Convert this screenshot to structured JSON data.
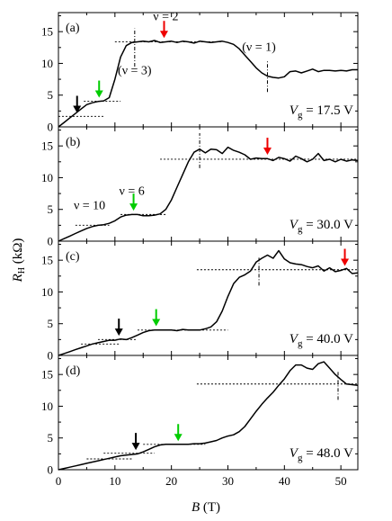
{
  "chart_data": [
    {
      "panel": "(a)",
      "type": "line",
      "xlabel": "B (T)",
      "ylabel": "R_H (kΩ)",
      "xlim": [
        0,
        53
      ],
      "ylim": [
        0,
        18
      ],
      "yticks": [
        0,
        5,
        10,
        15
      ],
      "x": [
        0,
        1,
        2,
        3,
        4,
        5,
        6,
        7,
        8,
        9,
        10,
        11,
        12,
        13,
        14,
        15,
        16,
        17,
        18,
        19,
        20,
        21,
        22,
        23,
        24,
        25,
        26,
        27,
        28,
        29,
        30,
        31,
        32,
        33,
        34,
        35,
        36,
        37,
        38,
        39,
        40,
        41,
        42,
        43,
        44,
        45,
        46,
        47,
        48,
        49,
        50,
        51,
        52,
        53
      ],
      "y": [
        0,
        0.7,
        1.4,
        2.1,
        2.8,
        3.5,
        3.8,
        4.0,
        4.1,
        4.6,
        7.5,
        11.0,
        12.8,
        13.3,
        13.4,
        13.5,
        13.4,
        13.6,
        13.3,
        13.4,
        13.5,
        13.3,
        13.5,
        13.4,
        13.2,
        13.5,
        13.4,
        13.3,
        13.4,
        13.5,
        13.3,
        13.0,
        12.3,
        11.3,
        10.3,
        9.3,
        8.5,
        8.0,
        7.8,
        7.7,
        7.9,
        8.7,
        8.8,
        8.5,
        8.8,
        9.1,
        8.7,
        8.9,
        8.9,
        8.8,
        8.9,
        8.8,
        9.0,
        9.0
      ],
      "plateaus": [
        {
          "y": 1.65,
          "x": [
            0,
            8
          ]
        },
        {
          "y": 4.05,
          "x": [
            4.5,
            11
          ]
        },
        {
          "y": 13.4,
          "x": [
            10,
            29
          ]
        }
      ],
      "vlines": [
        {
          "x": 13.5,
          "y": [
            9.5,
            15.5
          ]
        },
        {
          "x": 37.0,
          "y": [
            5.5,
            10.5
          ]
        }
      ],
      "arrows": [
        {
          "color": "#000000",
          "x": 3.3,
          "tip_y": 2.2
        },
        {
          "color": "#00cc00",
          "x": 7.2,
          "tip_y": 4.6
        },
        {
          "color": "#ee0000",
          "x": 18.7,
          "tip_y": 14.0
        }
      ],
      "annotations": [
        {
          "text": "ν = 2",
          "x": 19,
          "y": 16.8
        },
        {
          "text": "(ν = 3)",
          "x": 13.5,
          "y": 8.3
        },
        {
          "text": "(ν = 1)",
          "x": 35.5,
          "y": 12.0
        }
      ],
      "vg_label": "V",
      "vg_sub": "g",
      "vg_value": " = 17.5 V"
    },
    {
      "panel": "(b)",
      "type": "line",
      "xlim": [
        0,
        53
      ],
      "ylim": [
        0,
        18
      ],
      "yticks": [
        0,
        5,
        10,
        15
      ],
      "x": [
        0,
        1,
        2,
        3,
        4,
        5,
        6,
        7,
        8,
        9,
        10,
        11,
        12,
        13,
        14,
        15,
        16,
        17,
        18,
        19,
        20,
        21,
        22,
        23,
        24,
        25,
        26,
        27,
        28,
        29,
        30,
        31,
        32,
        33,
        34,
        35,
        36,
        37,
        38,
        39,
        40,
        41,
        42,
        43,
        44,
        45,
        46,
        47,
        48,
        49,
        50,
        51,
        52,
        53
      ],
      "y": [
        0,
        0.4,
        0.8,
        1.2,
        1.6,
        2.0,
        2.3,
        2.5,
        2.6,
        2.8,
        3.2,
        3.8,
        4.1,
        4.2,
        4.2,
        4.0,
        4.0,
        4.1,
        4.3,
        5.0,
        6.5,
        8.5,
        10.5,
        12.5,
        14.0,
        14.5,
        13.9,
        14.5,
        14.4,
        13.8,
        14.8,
        14.3,
        14.0,
        13.6,
        12.9,
        13.1,
        13.0,
        13.0,
        12.7,
        13.2,
        13.0,
        12.6,
        13.4,
        13.0,
        12.5,
        12.9,
        13.8,
        12.7,
        12.9,
        12.5,
        12.9,
        12.6,
        12.8,
        12.7
      ],
      "plateaus": [
        {
          "y": 2.5,
          "x": [
            3,
            9
          ]
        },
        {
          "y": 4.2,
          "x": [
            11,
            19
          ]
        },
        {
          "y": 12.9,
          "x": [
            18,
            53
          ]
        }
      ],
      "vlines": [
        {
          "x": 25.0,
          "y": [
            11.5,
            17.0
          ]
        }
      ],
      "arrows": [
        {
          "color": "#00cc00",
          "x": 13.3,
          "tip_y": 4.8
        },
        {
          "color": "#ee0000",
          "x": 37.0,
          "tip_y": 13.6
        }
      ],
      "annotations": [
        {
          "text": "ν = 10",
          "x": 5.5,
          "y": 5.0
        },
        {
          "text": "ν = 6",
          "x": 13.0,
          "y": 7.3
        }
      ],
      "vg_label": "V",
      "vg_sub": "g",
      "vg_value": " = 30.0 V"
    },
    {
      "panel": "(c)",
      "type": "line",
      "xlim": [
        0,
        53
      ],
      "ylim": [
        0,
        18
      ],
      "yticks": [
        0,
        5,
        10,
        15
      ],
      "x": [
        0,
        1,
        2,
        3,
        4,
        5,
        6,
        7,
        8,
        9,
        10,
        11,
        12,
        13,
        14,
        15,
        16,
        17,
        18,
        19,
        20,
        21,
        22,
        23,
        24,
        25,
        26,
        27,
        28,
        29,
        30,
        31,
        32,
        33,
        34,
        35,
        36,
        37,
        38,
        39,
        40,
        41,
        42,
        43,
        44,
        45,
        46,
        47,
        48,
        49,
        50,
        51,
        52,
        53
      ],
      "y": [
        0,
        0.3,
        0.6,
        0.9,
        1.2,
        1.5,
        1.8,
        2.0,
        2.2,
        2.4,
        2.4,
        2.6,
        2.5,
        2.8,
        3.2,
        3.6,
        3.9,
        4.0,
        4.0,
        4.0,
        4.0,
        3.9,
        4.1,
        4.0,
        4.0,
        4.0,
        4.2,
        4.5,
        5.3,
        7.0,
        9.3,
        11.3,
        12.3,
        12.7,
        13.3,
        14.7,
        15.3,
        15.8,
        15.3,
        16.5,
        15.2,
        14.6,
        14.4,
        14.3,
        14.0,
        13.8,
        14.1,
        13.3,
        13.8,
        13.2,
        13.4,
        13.7,
        12.9,
        13.0
      ],
      "plateaus": [
        {
          "y": 1.8,
          "x": [
            4,
            11
          ]
        },
        {
          "y": 2.5,
          "x": [
            7,
            14
          ]
        },
        {
          "y": 4.0,
          "x": [
            14,
            30
          ]
        },
        {
          "y": 13.5,
          "x": [
            24.5,
            53
          ]
        }
      ],
      "vlines": [
        {
          "x": 35.5,
          "y": [
            11.0,
            15.5
          ]
        }
      ],
      "arrows": [
        {
          "color": "#000000",
          "x": 10.7,
          "tip_y": 3.1
        },
        {
          "color": "#00cc00",
          "x": 17.3,
          "tip_y": 4.6
        },
        {
          "color": "#ee0000",
          "x": 50.7,
          "tip_y": 14.1
        }
      ],
      "annotations": [],
      "vg_label": "V",
      "vg_sub": "g",
      "vg_value": " = 40.0 V"
    },
    {
      "panel": "(d)",
      "type": "line",
      "xlim": [
        0,
        53
      ],
      "ylim": [
        0,
        18
      ],
      "yticks": [
        0,
        5,
        10,
        15
      ],
      "x": [
        0,
        1,
        2,
        3,
        4,
        5,
        6,
        7,
        8,
        9,
        10,
        11,
        12,
        13,
        14,
        15,
        16,
        17,
        18,
        19,
        20,
        21,
        22,
        23,
        24,
        25,
        26,
        27,
        28,
        29,
        30,
        31,
        32,
        33,
        34,
        35,
        36,
        37,
        38,
        39,
        40,
        41,
        42,
        43,
        44,
        45,
        46,
        47,
        48,
        49,
        50,
        51,
        52,
        53
      ],
      "y": [
        0,
        0.2,
        0.4,
        0.6,
        0.8,
        1.0,
        1.2,
        1.4,
        1.6,
        1.8,
        2.0,
        2.2,
        2.3,
        2.4,
        2.5,
        2.8,
        3.2,
        3.6,
        3.9,
        4.0,
        4.0,
        4.0,
        4.0,
        4.0,
        4.1,
        4.1,
        4.2,
        4.4,
        4.6,
        5.0,
        5.3,
        5.5,
        6.0,
        6.8,
        8.0,
        9.2,
        10.3,
        11.3,
        12.2,
        13.3,
        14.3,
        15.6,
        16.5,
        16.5,
        16.0,
        15.8,
        16.7,
        17.0,
        16.0,
        15.0,
        14.2,
        13.5,
        13.4,
        13.3
      ],
      "plateaus": [
        {
          "y": 1.7,
          "x": [
            5,
            13
          ]
        },
        {
          "y": 2.6,
          "x": [
            8,
            17
          ]
        },
        {
          "y": 4.0,
          "x": [
            15,
            26
          ]
        },
        {
          "y": 13.5,
          "x": [
            24.5,
            53
          ]
        }
      ],
      "vlines": [
        {
          "x": 49.5,
          "y": [
            11.0,
            15.5
          ]
        }
      ],
      "arrows": [
        {
          "color": "#000000",
          "x": 13.7,
          "tip_y": 3.1
        },
        {
          "color": "#00cc00",
          "x": 21.2,
          "tip_y": 4.5
        }
      ],
      "annotations": [],
      "vg_label": "V",
      "vg_sub": "g",
      "vg_value": " = 48.0 V"
    }
  ],
  "axes": {
    "xticks": [
      0,
      10,
      20,
      30,
      40,
      50
    ],
    "xlabel_italic": "B",
    "xlabel_unit": " (T)",
    "ylabel_italic": "R",
    "ylabel_sub": "H",
    "ylabel_unit": " (kΩ)"
  }
}
